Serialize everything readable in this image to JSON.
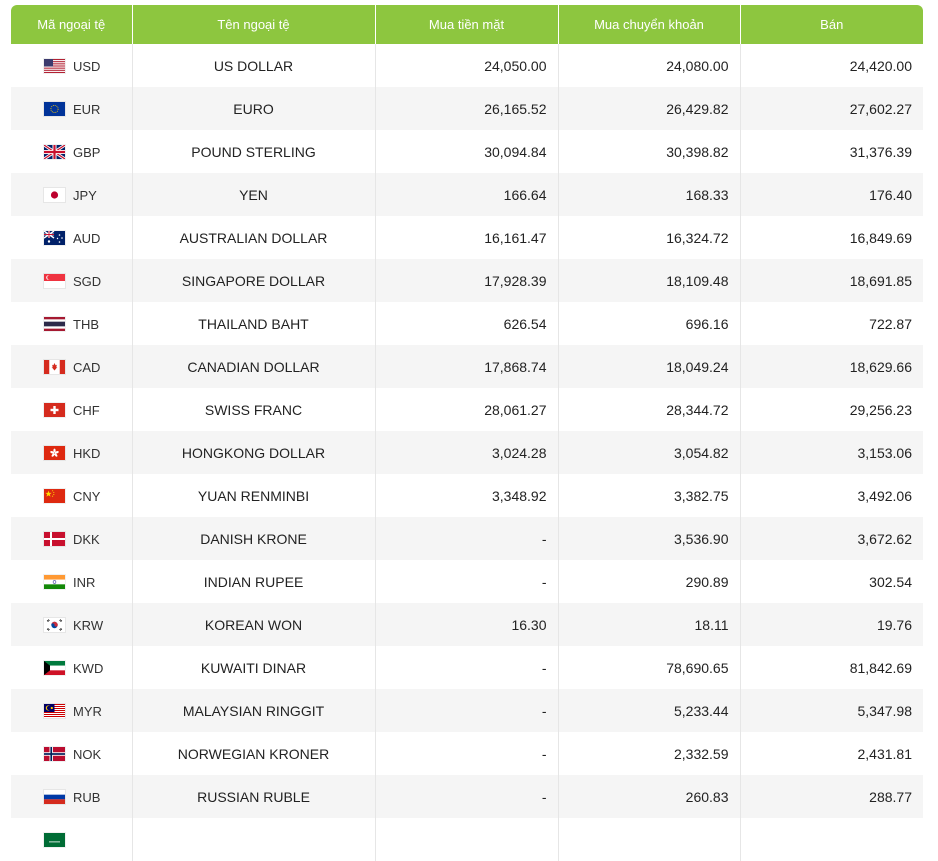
{
  "table": {
    "headers": {
      "code": "Mã ngoại tệ",
      "name": "Tên ngoại tệ",
      "cash_buy": "Mua tiền mặt",
      "transfer_buy": "Mua chuyển khoản",
      "sell": "Bán"
    },
    "rows": [
      {
        "code": "USD",
        "flag": "us-flag-icon",
        "name": "US DOLLAR",
        "cash_buy": "24,050.00",
        "transfer_buy": "24,080.00",
        "sell": "24,420.00"
      },
      {
        "code": "EUR",
        "flag": "eu-flag-icon",
        "name": "EURO",
        "cash_buy": "26,165.52",
        "transfer_buy": "26,429.82",
        "sell": "27,602.27"
      },
      {
        "code": "GBP",
        "flag": "gb-flag-icon",
        "name": "POUND STERLING",
        "cash_buy": "30,094.84",
        "transfer_buy": "30,398.82",
        "sell": "31,376.39"
      },
      {
        "code": "JPY",
        "flag": "jp-flag-icon",
        "name": "YEN",
        "cash_buy": "166.64",
        "transfer_buy": "168.33",
        "sell": "176.40"
      },
      {
        "code": "AUD",
        "flag": "au-flag-icon",
        "name": "AUSTRALIAN DOLLAR",
        "cash_buy": "16,161.47",
        "transfer_buy": "16,324.72",
        "sell": "16,849.69"
      },
      {
        "code": "SGD",
        "flag": "sg-flag-icon",
        "name": "SINGAPORE DOLLAR",
        "cash_buy": "17,928.39",
        "transfer_buy": "18,109.48",
        "sell": "18,691.85"
      },
      {
        "code": "THB",
        "flag": "th-flag-icon",
        "name": "THAILAND BAHT",
        "cash_buy": "626.54",
        "transfer_buy": "696.16",
        "sell": "722.87"
      },
      {
        "code": "CAD",
        "flag": "ca-flag-icon",
        "name": "CANADIAN DOLLAR",
        "cash_buy": "17,868.74",
        "transfer_buy": "18,049.24",
        "sell": "18,629.66"
      },
      {
        "code": "CHF",
        "flag": "ch-flag-icon",
        "name": "SWISS FRANC",
        "cash_buy": "28,061.27",
        "transfer_buy": "28,344.72",
        "sell": "29,256.23"
      },
      {
        "code": "HKD",
        "flag": "hk-flag-icon",
        "name": "HONGKONG DOLLAR",
        "cash_buy": "3,024.28",
        "transfer_buy": "3,054.82",
        "sell": "3,153.06"
      },
      {
        "code": "CNY",
        "flag": "cn-flag-icon",
        "name": "YUAN RENMINBI",
        "cash_buy": "3,348.92",
        "transfer_buy": "3,382.75",
        "sell": "3,492.06"
      },
      {
        "code": "DKK",
        "flag": "dk-flag-icon",
        "name": "DANISH KRONE",
        "cash_buy": "-",
        "transfer_buy": "3,536.90",
        "sell": "3,672.62"
      },
      {
        "code": "INR",
        "flag": "in-flag-icon",
        "name": "INDIAN RUPEE",
        "cash_buy": "-",
        "transfer_buy": "290.89",
        "sell": "302.54"
      },
      {
        "code": "KRW",
        "flag": "kr-flag-icon",
        "name": "KOREAN WON",
        "cash_buy": "16.30",
        "transfer_buy": "18.11",
        "sell": "19.76"
      },
      {
        "code": "KWD",
        "flag": "kw-flag-icon",
        "name": "KUWAITI DINAR",
        "cash_buy": "-",
        "transfer_buy": "78,690.65",
        "sell": "81,842.69"
      },
      {
        "code": "MYR",
        "flag": "my-flag-icon",
        "name": "MALAYSIAN RINGGIT",
        "cash_buy": "-",
        "transfer_buy": "5,233.44",
        "sell": "5,347.98"
      },
      {
        "code": "NOK",
        "flag": "no-flag-icon",
        "name": "NORWEGIAN KRONER",
        "cash_buy": "-",
        "transfer_buy": "2,332.59",
        "sell": "2,431.81"
      },
      {
        "code": "RUB",
        "flag": "ru-flag-icon",
        "name": "RUSSIAN RUBLE",
        "cash_buy": "-",
        "transfer_buy": "260.83",
        "sell": "288.77"
      },
      {
        "code": "",
        "flag": "sa-flag-icon",
        "name": "",
        "cash_buy": "",
        "transfer_buy": "",
        "sell": ""
      }
    ]
  },
  "colors": {
    "header_bg": "#8dc63f",
    "header_text": "#ffffff",
    "row_alt_bg": "#f5f5f5"
  }
}
